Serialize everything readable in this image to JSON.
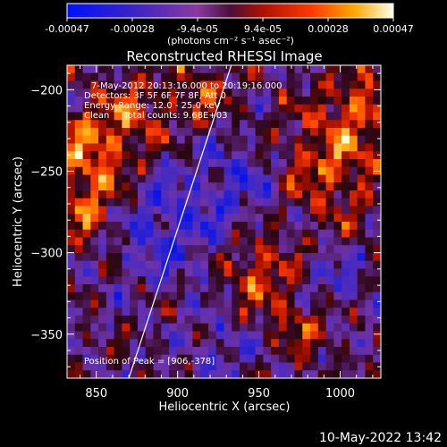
{
  "colorbar": {
    "ticks": [
      "-0.00047",
      "-0.00028",
      "-9.4e-05",
      "9.4e-05",
      "0.00028",
      "0.00047"
    ],
    "unit_label": "(photons cm⁻² s⁻¹ asec⁻²)",
    "range": [
      -0.00047,
      0.00047
    ]
  },
  "chart_data": {
    "type": "heatmap",
    "title": "Reconstructed RHESSI Image",
    "xlabel": "Heliocentric X (arcsec)",
    "ylabel": "Heliocentric Y (arcsec)",
    "xlim": [
      832,
      1025
    ],
    "ylim": [
      -377,
      -185
    ],
    "x_ticks": [
      850,
      900,
      950,
      1000
    ],
    "y_ticks": [
      -200,
      -250,
      -300,
      -350
    ],
    "x_tick_labels": [
      "850",
      "900",
      "950",
      "1000"
    ],
    "y_tick_labels": [
      "−200",
      "−250",
      "−300",
      "−350"
    ],
    "limb_line": [
      [
        870,
        -377
      ],
      [
        933,
        -185
      ]
    ],
    "peak": [
      906,
      -378
    ],
    "annotations": [
      "7-May-2012 20:13:16.000 to 20:19:16.000",
      "Detectors: 3F 5F 6F 7F 8F, Att 0",
      "Energy Range: 12.0 - 25.0 keV",
      "Clean     Total counts: 9.68E+03"
    ],
    "peak_label": "Position of Peak = [906,-378]"
  },
  "footer": {
    "timestamp": "10-May-2022 13:42"
  }
}
